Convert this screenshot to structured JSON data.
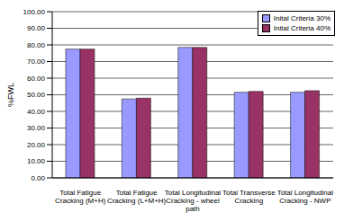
{
  "chart_data": {
    "type": "bar",
    "y_label": "%FWL",
    "categories": [
      "Total Fatigue Cracking (M+H)",
      "Total Fatigue Cracking (L+M+H)",
      "Total Longitudinal Cracking - wheel path",
      "Total Transverse Cracking",
      "Total Longitudinal Cracking - NWP"
    ],
    "series": [
      {
        "name": "Inital Criteria 30%",
        "color": "#9999ff",
        "values": [
          77.5,
          47.5,
          78.5,
          51.5,
          51.5
        ]
      },
      {
        "name": "Inital Criteria 40%",
        "color": "#993366",
        "values": [
          77.5,
          48,
          78.5,
          52,
          52.5
        ]
      }
    ],
    "ylim": [
      0,
      100
    ],
    "yticks": [
      {
        "value": 0,
        "label": "0.00"
      },
      {
        "value": 10,
        "label": "10.00"
      },
      {
        "value": 20,
        "label": "20.00"
      },
      {
        "value": 30,
        "label": "30.00"
      },
      {
        "value": 40,
        "label": "40.00"
      },
      {
        "value": 50,
        "label": "50.00"
      },
      {
        "value": 60,
        "label": "60.00"
      },
      {
        "value": 70,
        "label": "70.00"
      },
      {
        "value": 80,
        "label": "80.00"
      },
      {
        "value": 90,
        "label": "90.00"
      },
      {
        "value": 100,
        "label": "100.00"
      }
    ],
    "grid": true,
    "legend": "top-right"
  }
}
